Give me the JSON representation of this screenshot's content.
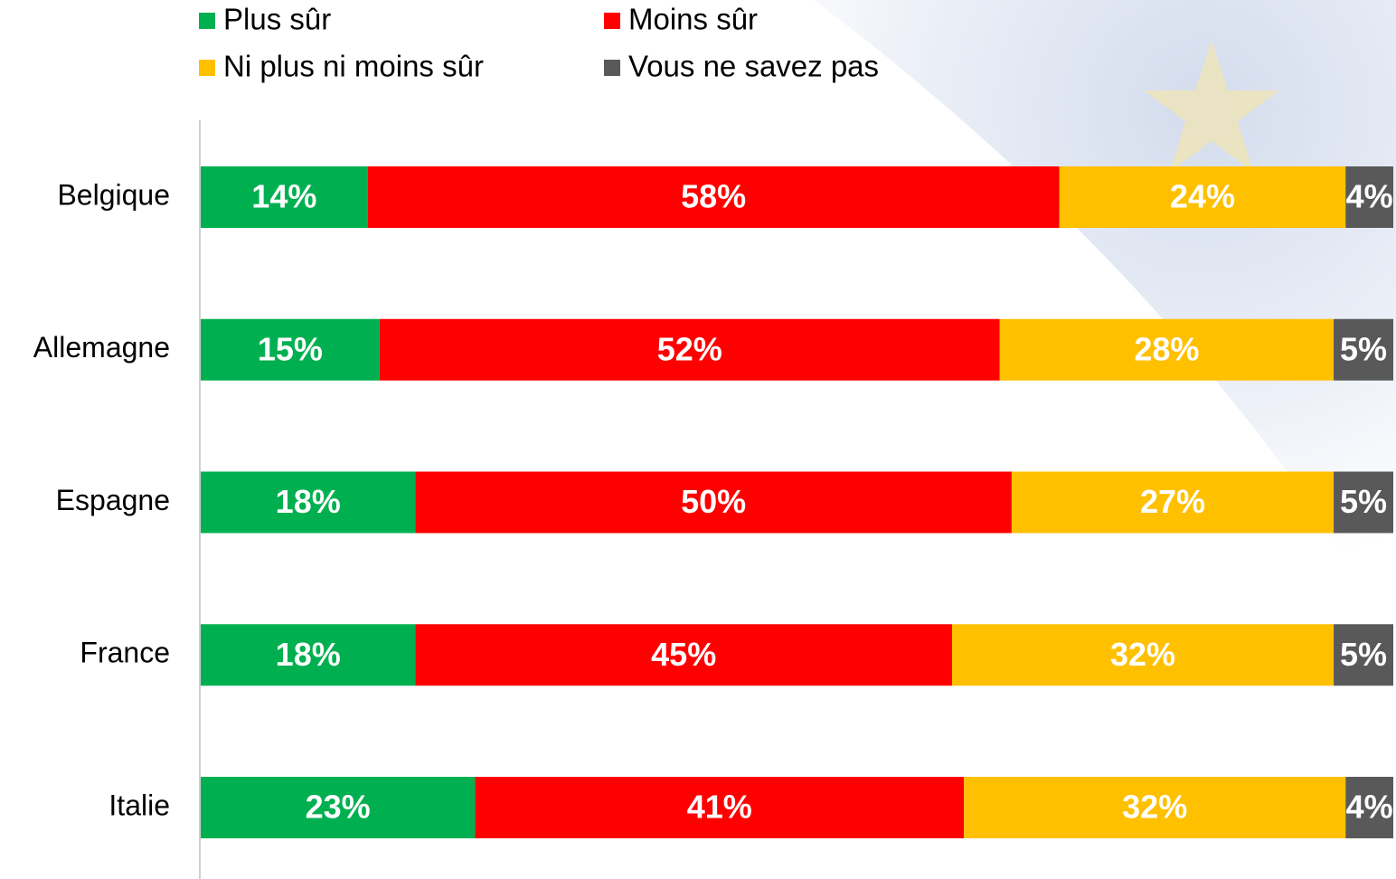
{
  "chart_data": {
    "type": "stacked-bar-horizontal",
    "categories": [
      "Belgique",
      "Allemagne",
      "Espagne",
      "France",
      "Italie"
    ],
    "series": [
      {
        "name": "Plus sûr",
        "color": "#00b050",
        "values": [
          14,
          15,
          18,
          18,
          23
        ],
        "value_labels": [
          "14%",
          "15%",
          "18%",
          "18%",
          "23%"
        ]
      },
      {
        "name": "Moins sûr",
        "color": "#ff0000",
        "values": [
          58,
          52,
          50,
          45,
          41
        ],
        "value_labels": [
          "58%",
          "52%",
          "50%",
          "45%",
          "41%"
        ]
      },
      {
        "name": "Ni plus ni moins sûr",
        "color": "#ffc000",
        "values": [
          24,
          28,
          27,
          32,
          32
        ],
        "value_labels": [
          "24%",
          "28%",
          "27%",
          "32%",
          "32%"
        ]
      },
      {
        "name": "Vous ne savez pas",
        "color": "#595959",
        "values": [
          4,
          5,
          5,
          5,
          4
        ],
        "value_labels": [
          "4%",
          "5%",
          "5%",
          "5%",
          "4%"
        ]
      }
    ],
    "legend": "top"
  }
}
